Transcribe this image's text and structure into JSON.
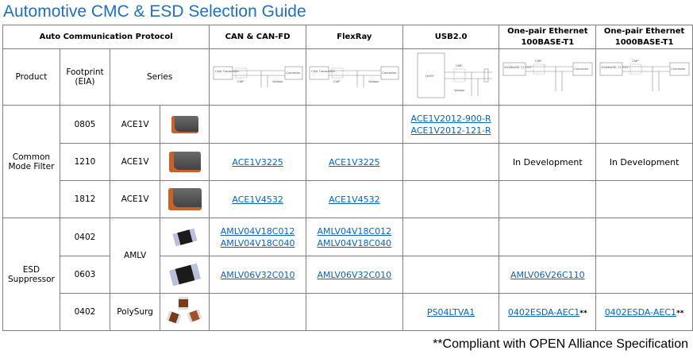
{
  "title": "Automotive CMC & ESD Selection Guide",
  "header": {
    "protocol": "Auto Communication Protocol",
    "columns": [
      "CAN & CAN-FD",
      "FlexRay",
      "USB2.0",
      "One-pair Ethernet",
      "100BASE-T1",
      "One-pair Ethernet",
      "1000BASE-T1"
    ],
    "product": "Product",
    "footprint": "Footprint",
    "footprint_unit": "(EIA)",
    "series": "Series"
  },
  "diagrams": {
    "can_transceiver": "CAN Transceiver",
    "cmf": "CMF",
    "connector": "Connector",
    "varistor": "Varistor",
    "host": "HOST",
    "phy": "1000BASE-T1 PHY"
  },
  "groups": {
    "cmf": "Common Mode Filter",
    "esd": "ESD Suppressor"
  },
  "rows": [
    {
      "footprint": "0805",
      "series": "ACE1V",
      "can": "",
      "flexray": "",
      "usb": [
        "ACE1V2012-900-R",
        "ACE1V2012-121-R"
      ],
      "eth100": "",
      "eth1000": ""
    },
    {
      "footprint": "1210",
      "series": "ACE1V",
      "can": "ACE1V3225",
      "flexray": "ACE1V3225",
      "usb": "",
      "eth100": "In Development",
      "eth1000": "In Development"
    },
    {
      "footprint": "1812",
      "series": "ACE1V",
      "can": "ACE1V4532",
      "flexray": "ACE1V4532",
      "usb": "",
      "eth100": "",
      "eth1000": ""
    },
    {
      "footprint": "0402",
      "series": "AMLV",
      "can": [
        "AMLV04V18C012",
        "AMLV04V18C040"
      ],
      "flexray": [
        "AMLV04V18C012",
        "AMLV04V18C040"
      ],
      "usb": "",
      "eth100": "",
      "eth1000": ""
    },
    {
      "footprint": "0603",
      "series": "AMLV",
      "can": "AMLV06V32C010",
      "flexray": "AMLV06V32C010",
      "usb": "",
      "eth100": "AMLV06V26C110",
      "eth1000": ""
    },
    {
      "footprint": "0402",
      "series": "PolySurg",
      "can": "",
      "flexray": "",
      "usb": "PS04LTVA1",
      "eth100": "0402ESDA-AEC1",
      "eth1000": "0402ESDA-AEC1",
      "mark": "**"
    }
  ],
  "footnote": "**Compliant with OPEN Alliance Specification",
  "colors": {
    "title": "#1f6fbf",
    "link": "#0563c1",
    "border": "#7f7f7f"
  }
}
